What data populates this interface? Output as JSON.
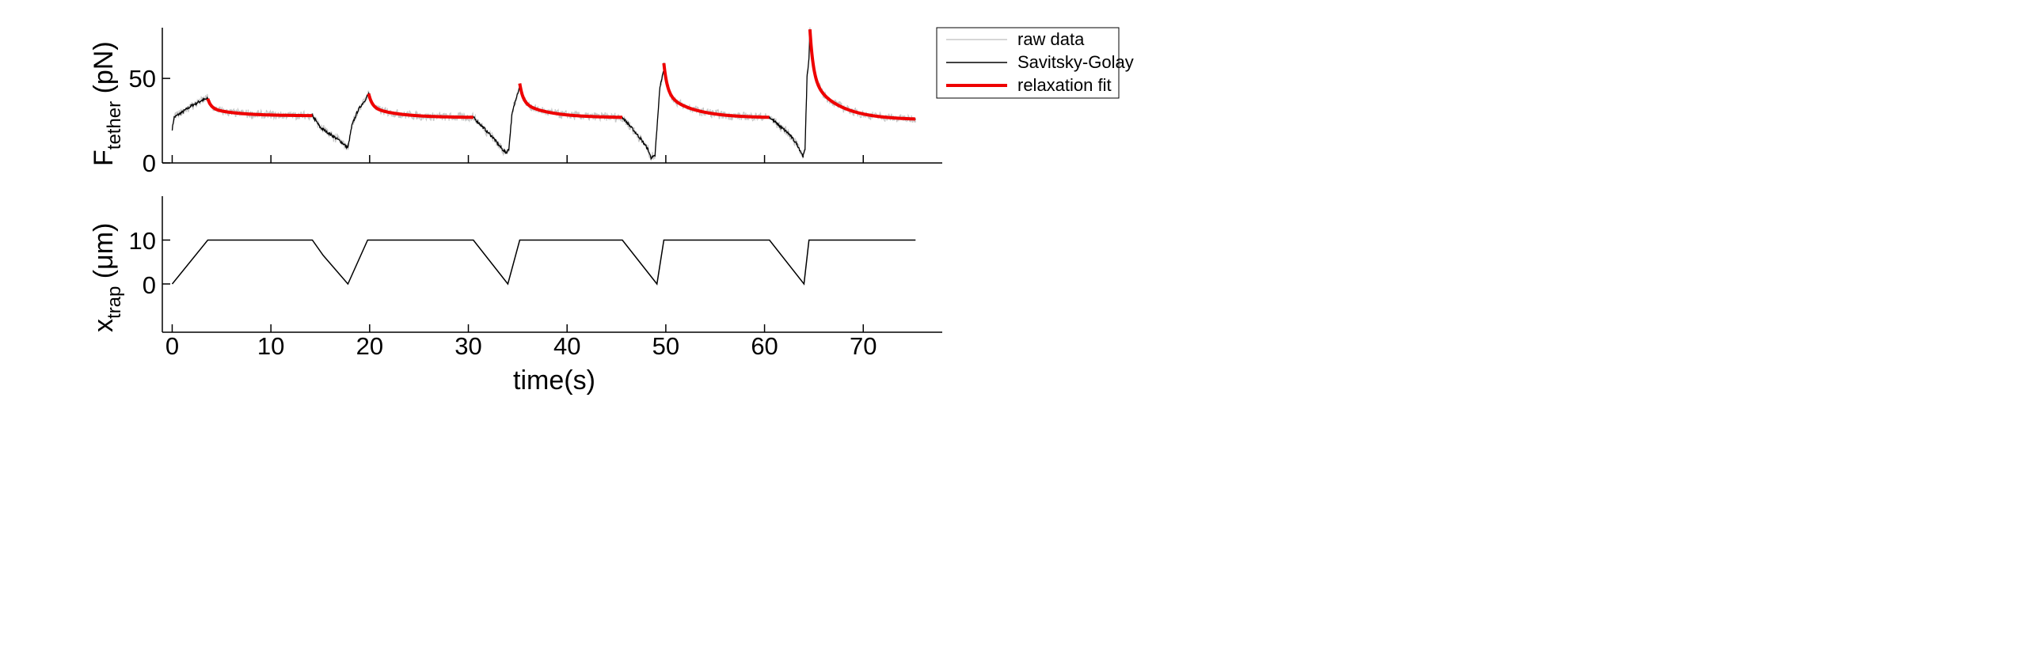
{
  "chart_data": [
    {
      "type": "line",
      "panel": "top",
      "title": "",
      "ylabel_main": "F",
      "ylabel_sub": "tether",
      "ylabel_unit": " (pN)",
      "xlim": [
        -1,
        78
      ],
      "ylim": [
        0,
        80
      ],
      "xticks": [
        0,
        10,
        20,
        30,
        40,
        50,
        60,
        70
      ],
      "yticks": [
        0,
        50
      ],
      "ytick_labels": [
        "0",
        "50"
      ],
      "legend": {
        "placement": "outside-top-right",
        "entries": [
          "raw data",
          "Savitsky-Golay",
          "relaxation fit"
        ]
      },
      "colors": {
        "raw": "#c8c8c8",
        "sg": "#000000",
        "fit": "#ee0000"
      },
      "raw_noise_amplitude_pN": 2.5,
      "savitsky_golay_keypoints": [
        [
          0,
          20
        ],
        [
          0.2,
          27
        ],
        [
          1,
          30
        ],
        [
          2,
          34
        ],
        [
          3,
          37
        ],
        [
          3.6,
          38
        ],
        [
          14.2,
          28
        ],
        [
          15,
          21
        ],
        [
          16,
          17
        ],
        [
          17,
          13
        ],
        [
          17.6,
          10
        ],
        [
          17.8,
          9
        ],
        [
          18.2,
          22
        ],
        [
          18.8,
          31
        ],
        [
          19.5,
          37
        ],
        [
          19.9,
          41
        ],
        [
          30.5,
          27
        ],
        [
          31.5,
          21
        ],
        [
          32.5,
          15
        ],
        [
          33.3,
          9
        ],
        [
          33.8,
          6
        ],
        [
          34.1,
          8
        ],
        [
          34.4,
          28
        ],
        [
          34.8,
          38
        ],
        [
          35.2,
          45
        ],
        [
          45.6,
          27
        ],
        [
          46.5,
          21
        ],
        [
          47.5,
          14
        ],
        [
          48.2,
          8
        ],
        [
          48.5,
          3
        ],
        [
          48.9,
          4
        ],
        [
          49.1,
          20
        ],
        [
          49.4,
          45
        ],
        [
          49.8,
          55
        ],
        [
          60.5,
          27
        ],
        [
          61.5,
          22
        ],
        [
          62.5,
          17
        ],
        [
          63.3,
          11
        ],
        [
          63.9,
          4
        ],
        [
          64.1,
          8
        ],
        [
          64.3,
          50
        ],
        [
          64.5,
          62
        ]
      ],
      "relaxation_fits": [
        {
          "t_start": 3.6,
          "t_end": 14.2,
          "F_start": 38,
          "F_end": 28
        },
        {
          "t_start": 19.9,
          "t_end": 30.5,
          "F_start": 41,
          "F_end": 27
        },
        {
          "t_start": 35.2,
          "t_end": 45.6,
          "F_start": 47,
          "F_end": 27
        },
        {
          "t_start": 49.8,
          "t_end": 60.5,
          "F_start": 59,
          "F_end": 27
        },
        {
          "t_start": 64.6,
          "t_end": 75.3,
          "F_start": 79,
          "F_end": 26
        }
      ]
    },
    {
      "type": "line",
      "panel": "bottom",
      "ylabel_main": "x",
      "ylabel_sub": "trap",
      "ylabel_unit": " (μm)",
      "xlabel": "time(s)",
      "xlim": [
        -1,
        78
      ],
      "ylim": [
        -11,
        20
      ],
      "xticks": [
        0,
        10,
        20,
        30,
        40,
        50,
        60,
        70
      ],
      "xtick_labels": [
        "0",
        "10",
        "20",
        "30",
        "40",
        "50",
        "60",
        "70"
      ],
      "yticks": [
        0,
        10
      ],
      "ytick_labels": [
        "0",
        "10"
      ],
      "series": [
        {
          "name": "x_trap",
          "color": "#000000",
          "points": [
            [
              0,
              0
            ],
            [
              3.6,
              10
            ],
            [
              14.2,
              10
            ],
            [
              15.3,
              6.5
            ],
            [
              17.8,
              0
            ],
            [
              19.8,
              10
            ],
            [
              30.5,
              10
            ],
            [
              34,
              0
            ],
            [
              35.2,
              10
            ],
            [
              45.6,
              10
            ],
            [
              49.1,
              0
            ],
            [
              49.8,
              10
            ],
            [
              60.5,
              10
            ],
            [
              64,
              0
            ],
            [
              64.5,
              10
            ],
            [
              75.3,
              10
            ]
          ]
        }
      ]
    }
  ]
}
